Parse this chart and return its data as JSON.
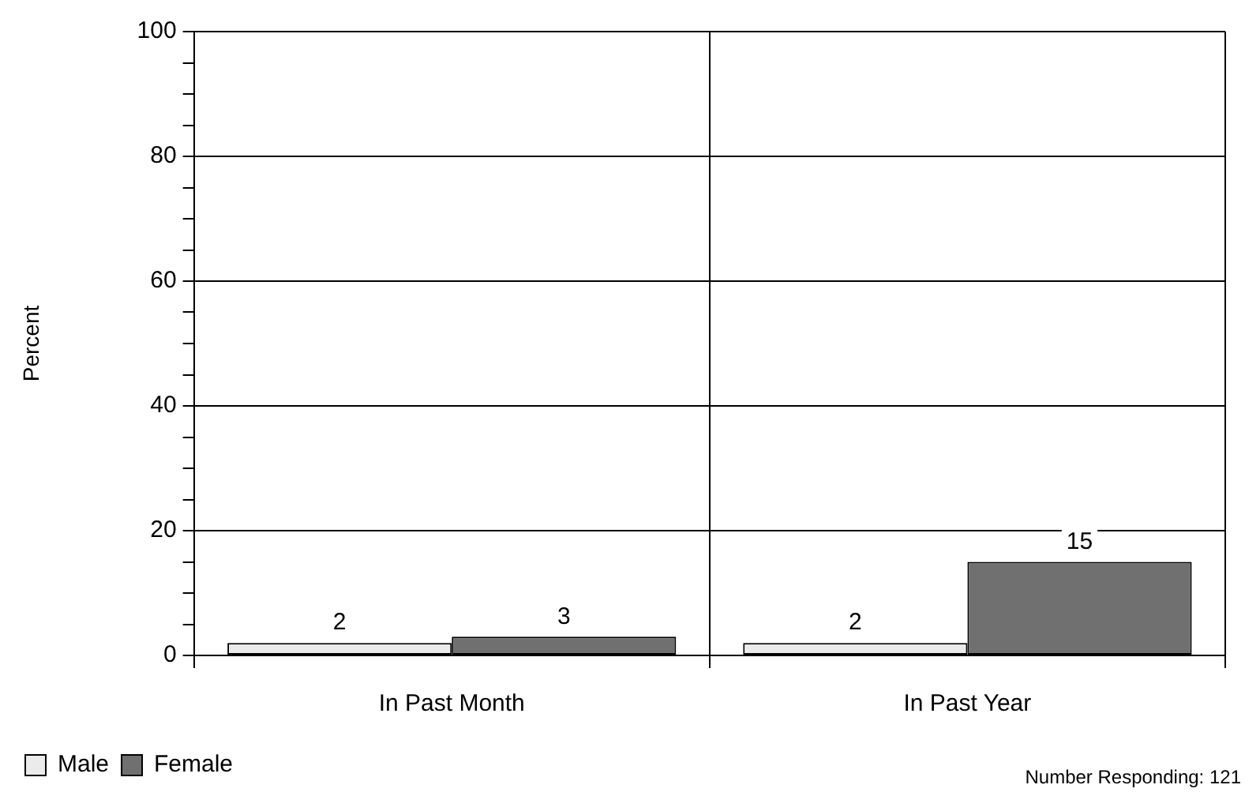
{
  "chart_data": {
    "type": "bar",
    "ylabel": "Percent",
    "categories": [
      "In Past Month",
      "In Past Year"
    ],
    "series": [
      {
        "name": "Male",
        "color": "#ebebeb",
        "values": [
          2,
          2
        ]
      },
      {
        "name": "Female",
        "color": "#707070",
        "values": [
          3,
          15
        ]
      }
    ],
    "ylim": [
      0,
      100
    ],
    "yticks": [
      0,
      {
        "value": 5,
        "label": null
      },
      {
        "value": 10,
        "label": null
      },
      {
        "value": 15,
        "label": null
      },
      20,
      {
        "value": 25,
        "label": null
      },
      {
        "value": 30,
        "label": null
      },
      {
        "value": 35,
        "label": null
      },
      40,
      {
        "value": 45,
        "label": null
      },
      {
        "value": 50,
        "label": null
      },
      {
        "value": 55,
        "label": null
      },
      60,
      {
        "value": 65,
        "label": null
      },
      {
        "value": 70,
        "label": null
      },
      {
        "value": 75,
        "label": null
      },
      80,
      {
        "value": 85,
        "label": null
      },
      {
        "value": 90,
        "label": null
      },
      {
        "value": 95,
        "label": null
      },
      100
    ],
    "grid": true,
    "legend": "bottom left",
    "data_labels": true,
    "annotations": [
      "Number Responding: 121"
    ]
  }
}
